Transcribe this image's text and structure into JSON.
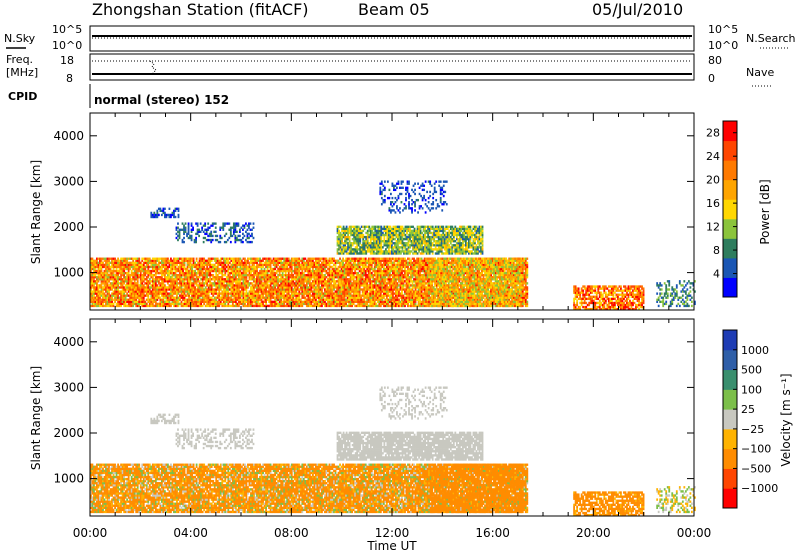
{
  "header": {
    "title": "Zhongshan Station (fitACF)",
    "beam": "Beam 05",
    "date": "05/Jul/2010"
  },
  "top_panels": {
    "nsky_label": "N.Sky",
    "nsky_ticks": [
      "10^5",
      "10^0"
    ],
    "nsearch_label": "N.Search",
    "nsearch_ticks": [
      "10^5",
      "10^0"
    ],
    "freq_label_1": "Freq.",
    "freq_label_2": "[MHz]",
    "freq_ticks": [
      "18",
      "8"
    ],
    "nave_label": "Nave",
    "nave_ticks": [
      "80",
      "0"
    ],
    "cpid_label": "CPID",
    "cpid_value": "normal (stereo) 152"
  },
  "colors": {
    "power_scale": [
      "#0000ff",
      "#1a56b4",
      "#2e7d5e",
      "#8bc43c",
      "#ffd700",
      "#ffa500",
      "#ff7a00",
      "#ff4500",
      "#ff0000"
    ],
    "velocity_scale": [
      "#ff0000",
      "#ff4500",
      "#ff8c00",
      "#ffb300",
      "#c8c8c0",
      "#7cbf4a",
      "#3a8f6e",
      "#2f5fa8",
      "#1e3cb4"
    ]
  },
  "chart_data": [
    {
      "type": "heatmap",
      "name": "Power",
      "xlabel": "Time UT",
      "ylabel": "Slant Range [km]",
      "xlim": [
        0,
        24
      ],
      "ylim": [
        180,
        4500
      ],
      "y_ticks": [
        "1000",
        "2000",
        "3000",
        "4000"
      ],
      "x_ticks": [
        "00:00",
        "04:00",
        "08:00",
        "12:00",
        "16:00",
        "20:00",
        "00:00"
      ],
      "colorbar_label": "Power [dB]",
      "colorbar_ticks": [
        "4",
        "8",
        "12",
        "16",
        "20",
        "24",
        "28"
      ],
      "clim": [
        0,
        30
      ]
    },
    {
      "type": "heatmap",
      "name": "Velocity",
      "xlabel": "Time UT",
      "ylabel": "Slant Range [km]",
      "xlim": [
        0,
        24
      ],
      "ylim": [
        180,
        4500
      ],
      "y_ticks": [
        "1000",
        "2000",
        "3000",
        "4000"
      ],
      "x_ticks": [
        "00:00",
        "04:00",
        "08:00",
        "12:00",
        "16:00",
        "20:00",
        "00:00"
      ],
      "colorbar_label": "Velocity [m s⁻¹]",
      "colorbar_ticks": [
        "1000",
        "500",
        "100",
        "25",
        "−25",
        "−100",
        "−500",
        "−1000"
      ],
      "clim": [
        -1200,
        1200
      ]
    }
  ],
  "scatter_regions": [
    {
      "t0": 0.0,
      "t1": 17.4,
      "r0": 250,
      "r1": 1300,
      "density": 0.9,
      "pow": [
        12,
        28
      ],
      "vel": [
        -500,
        100
      ]
    },
    {
      "t0": 2.4,
      "t1": 3.5,
      "r0": 2200,
      "r1": 2400,
      "density": 0.55,
      "pow": [
        2,
        8
      ],
      "vel": [
        -25,
        25
      ]
    },
    {
      "t0": 3.4,
      "t1": 6.5,
      "r0": 1650,
      "r1": 2100,
      "density": 0.4,
      "pow": [
        2,
        9
      ],
      "vel": [
        -25,
        25
      ]
    },
    {
      "t0": 9.8,
      "t1": 15.6,
      "r0": 1400,
      "r1": 2000,
      "density": 0.85,
      "pow": [
        6,
        17
      ],
      "vel": [
        -25,
        25
      ]
    },
    {
      "t0": 11.5,
      "t1": 14.2,
      "r0": 2300,
      "r1": 3000,
      "density": 0.25,
      "pow": [
        2,
        7
      ],
      "vel": [
        -25,
        25
      ]
    },
    {
      "t0": 13.5,
      "t1": 17.2,
      "r0": 250,
      "r1": 1300,
      "density": 0.6,
      "pow": [
        10,
        22
      ],
      "vel": [
        -500,
        -100
      ]
    },
    {
      "t0": 19.2,
      "t1": 22.0,
      "r0": 180,
      "r1": 700,
      "density": 0.75,
      "pow": [
        14,
        30
      ],
      "vel": [
        -500,
        -25
      ]
    },
    {
      "t0": 22.5,
      "t1": 24.0,
      "r0": 250,
      "r1": 800,
      "density": 0.4,
      "pow": [
        4,
        12
      ],
      "vel": [
        -100,
        100
      ]
    }
  ]
}
